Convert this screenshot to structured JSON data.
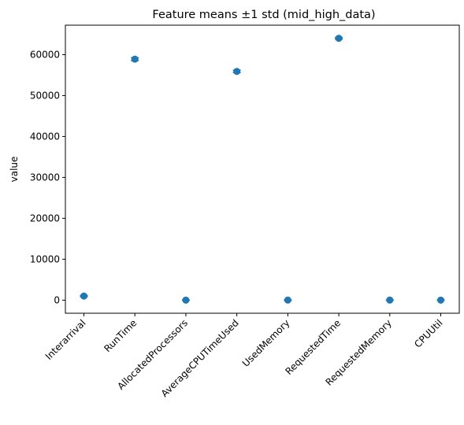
{
  "chart_data": {
    "type": "scatter",
    "title": "Feature means ±1 std (mid_high_data)",
    "xlabel": "",
    "ylabel": "value",
    "categories": [
      "Interarrival",
      "RunTime",
      "AllocatedProcessors",
      "AverageCPUTimeUsed",
      "UsedMemory",
      "RequestedTime",
      "RequestedMemory",
      "CPUUtil"
    ],
    "series": [
      {
        "values": [
          1000,
          58900,
          5,
          55900,
          10,
          64000,
          10,
          1
        ],
        "std": [
          150,
          350,
          2,
          300,
          5,
          200,
          5,
          0.5
        ]
      }
    ],
    "y_ticks": [
      "0",
      "10000",
      "20000",
      "30000",
      "40000",
      "50000",
      "60000"
    ],
    "ylim": [
      -3200,
      67200
    ],
    "grid": false,
    "marker_color": "#1f77b4"
  }
}
